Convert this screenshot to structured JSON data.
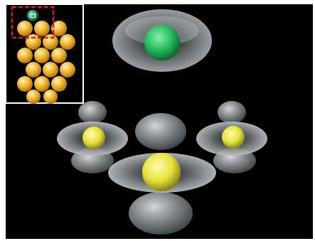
{
  "figure": {
    "background_color": "#000000",
    "border_color": "#ffffff",
    "inset": {
      "atom_label": "Cl",
      "label_color": "#ffffff",
      "chlorine_color": "#1f9a5c",
      "substrate_atom_color": "#f5b731",
      "highlight_box_color": "#d62020",
      "substrate_atom_count": 17
    },
    "main_view": {
      "chlorine_core_color": "#21b85a",
      "substrate_core_color": "#e6e23a",
      "orbital_lobe_color": "#a8b0b4",
      "visible_substrate_cores": 3
    }
  }
}
